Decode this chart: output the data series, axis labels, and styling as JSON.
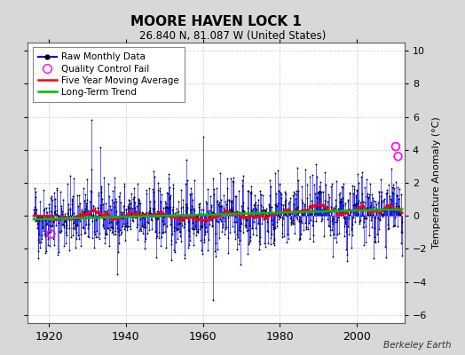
{
  "title": "MOORE HAVEN LOCK 1",
  "subtitle": "26.840 N, 81.087 W (United States)",
  "credit": "Berkeley Earth",
  "ylabel": "Temperature Anomaly (°C)",
  "xlim": [
    1914.5,
    2012.5
  ],
  "ylim": [
    -6.5,
    10.5
  ],
  "yticks": [
    -6,
    -4,
    -2,
    0,
    2,
    4,
    6,
    8,
    10
  ],
  "xticks": [
    1920,
    1940,
    1960,
    1980,
    2000
  ],
  "outer_bg": "#d8d8d8",
  "plot_bg": "#ffffff",
  "raw_color": "#0000ff",
  "dot_color": "#000000",
  "qc_color": "#ff00ff",
  "ma_color": "#ff0000",
  "trend_color": "#00bb00",
  "grid_color": "#cccccc",
  "seed": 42,
  "n_years": 96,
  "start_year": 1916
}
